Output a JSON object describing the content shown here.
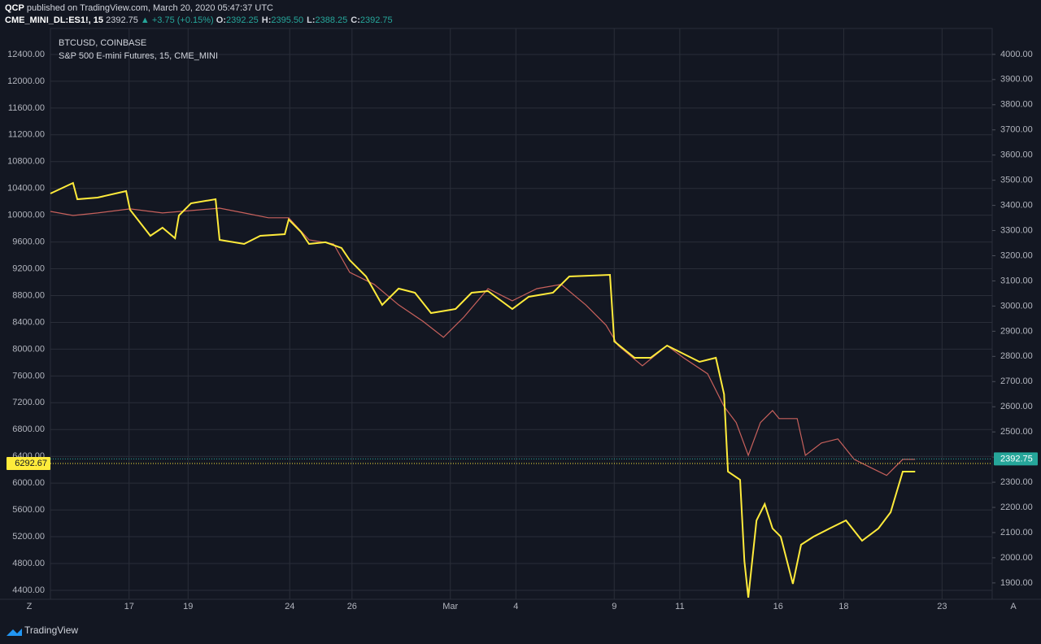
{
  "header": {
    "author": "QCP",
    "published": "published on TradingView.com, March 20, 2020 05:47:37 UTC",
    "symbol": "CME_MINI_DL:ES1!, 15",
    "last": "2392.75",
    "change": "▲ +3.75 (+0.15%)",
    "ohlc": [
      {
        "label": "O:",
        "value": "2392.25"
      },
      {
        "label": "H:",
        "value": "2395.50"
      },
      {
        "label": "L:",
        "value": "2388.25"
      },
      {
        "label": "C:",
        "value": "2392.75"
      }
    ]
  },
  "footer": {
    "brand": "TradingView"
  },
  "corners": {
    "left": "Z",
    "right": "A"
  },
  "chart_data": {
    "type": "line",
    "grid": true,
    "xlim": [
      0,
      28.73
    ],
    "xticks": [
      {
        "value": 2.4,
        "label": "17"
      },
      {
        "value": 4.2,
        "label": "19"
      },
      {
        "value": 7.3,
        "label": "24"
      },
      {
        "value": 9.2,
        "label": "26"
      },
      {
        "value": 12.2,
        "label": "Mar"
      },
      {
        "value": 14.2,
        "label": "4"
      },
      {
        "value": 17.2,
        "label": "9"
      },
      {
        "value": 19.2,
        "label": "11"
      },
      {
        "value": 22.2,
        "label": "16"
      },
      {
        "value": 24.2,
        "label": "18"
      },
      {
        "value": 27.2,
        "label": "23"
      }
    ],
    "ylim": [
      4266,
      12788
    ],
    "yticks": [
      {
        "value": 4400,
        "label": "4400.00"
      },
      {
        "value": 4800,
        "label": "4800.00"
      },
      {
        "value": 5200,
        "label": "5200.00"
      },
      {
        "value": 5600,
        "label": "5600.00"
      },
      {
        "value": 6000,
        "label": "6000.00"
      },
      {
        "value": 6400,
        "label": "6400.00"
      },
      {
        "value": 6800,
        "label": "6800.00"
      },
      {
        "value": 7200,
        "label": "7200.00"
      },
      {
        "value": 7600,
        "label": "7600.00"
      },
      {
        "value": 8000,
        "label": "8000.00"
      },
      {
        "value": 8400,
        "label": "8400.00"
      },
      {
        "value": 8800,
        "label": "8800.00"
      },
      {
        "value": 9200,
        "label": "9200.00"
      },
      {
        "value": 9600,
        "label": "9600.00"
      },
      {
        "value": 10000,
        "label": "10000.00"
      },
      {
        "value": 10400,
        "label": "10400.00"
      },
      {
        "value": 10800,
        "label": "10800.00"
      },
      {
        "value": 11200,
        "label": "11200.00"
      },
      {
        "value": 11600,
        "label": "11600.00"
      },
      {
        "value": 12000,
        "label": "12000.00"
      },
      {
        "value": 12400,
        "label": "12400.00"
      }
    ],
    "y2lim": [
      1835,
      4103
    ],
    "y2ticks": [
      {
        "value": 1900,
        "label": "1900.00"
      },
      {
        "value": 2000,
        "label": "2000.00"
      },
      {
        "value": 2100,
        "label": "2100.00"
      },
      {
        "value": 2200,
        "label": "2200.00"
      },
      {
        "value": 2300,
        "label": "2300.00"
      },
      {
        "value": 2400,
        "label": "2400.00"
      },
      {
        "value": 2500,
        "label": "2500.00"
      },
      {
        "value": 2600,
        "label": "2600.00"
      },
      {
        "value": 2700,
        "label": "2700.00"
      },
      {
        "value": 2800,
        "label": "2800.00"
      },
      {
        "value": 2900,
        "label": "2900.00"
      },
      {
        "value": 3000,
        "label": "3000.00"
      },
      {
        "value": 3100,
        "label": "3100.00"
      },
      {
        "value": 3200,
        "label": "3200.00"
      },
      {
        "value": 3300,
        "label": "3300.00"
      },
      {
        "value": 3400,
        "label": "3400.00"
      },
      {
        "value": 3500,
        "label": "3500.00"
      },
      {
        "value": 3600,
        "label": "3600.00"
      },
      {
        "value": 3700,
        "label": "3700.00"
      },
      {
        "value": 3800,
        "label": "3800.00"
      },
      {
        "value": 3900,
        "label": "3900.00"
      },
      {
        "value": 4000,
        "label": "4000.00"
      }
    ],
    "series": [
      {
        "name": "S&P 500 E-mini Futures, 15, CME_MINI",
        "color": "#c8615c",
        "axis": "y2",
        "last_value": 2392.75,
        "tag_color": "#26a69a",
        "x": [
          0,
          0.69,
          1.44,
          2.43,
          3.42,
          5.16,
          5.91,
          6.65,
          7.27,
          7.89,
          8.64,
          9.13,
          9.88,
          10.62,
          11.36,
          11.99,
          12.61,
          13.35,
          14.09,
          14.84,
          15.58,
          16.33,
          16.95,
          17.32,
          18.06,
          18.81,
          19.31,
          20.05,
          20.55,
          20.92,
          21.29,
          21.66,
          22.03,
          22.23,
          22.78,
          23.03,
          23.52,
          24.02,
          24.52,
          25.01,
          25.51,
          26.0,
          26.38
        ],
        "values": [
          3376,
          3360,
          3370,
          3386,
          3370,
          3389,
          3370,
          3351,
          3351,
          3263,
          3247,
          3134,
          3086,
          3005,
          2940,
          2876,
          2956,
          3069,
          3021,
          3069,
          3086,
          3005,
          2924,
          2843,
          2763,
          2843,
          2795,
          2731,
          2601,
          2537,
          2407,
          2537,
          2585,
          2553,
          2553,
          2407,
          2456,
          2472,
          2391,
          2359,
          2327,
          2391,
          2391
        ]
      },
      {
        "name": "BTCUSD, COINBASE",
        "color": "#ffeb3b",
        "last_value": 6292.67,
        "tag_color": "#ffeb3b",
        "x": [
          0,
          0.69,
          0.82,
          1.44,
          2.31,
          2.43,
          3.05,
          3.42,
          3.8,
          3.92,
          4.29,
          5.04,
          5.16,
          5.91,
          6.4,
          7.15,
          7.27,
          7.64,
          7.89,
          8.39,
          8.88,
          9.13,
          9.63,
          10.12,
          10.62,
          11.12,
          11.61,
          12.36,
          12.85,
          13.35,
          14.09,
          14.59,
          15.33,
          15.83,
          17.07,
          17.2,
          17.82,
          18.31,
          18.81,
          19.8,
          20.3,
          20.55,
          20.67,
          21.04,
          21.17,
          21.29,
          21.54,
          21.79,
          22.03,
          22.28,
          22.65,
          22.9,
          23.28,
          23.77,
          24.27,
          24.76,
          25.26,
          25.63,
          26.0,
          26.38
        ],
        "values": [
          10324,
          10482,
          10239,
          10263,
          10360,
          10081,
          9693,
          9814,
          9656,
          9996,
          10178,
          10239,
          9632,
          9571,
          9693,
          9717,
          9936,
          9753,
          9571,
          9596,
          9511,
          9329,
          9086,
          8661,
          8904,
          8843,
          8539,
          8600,
          8843,
          8867,
          8600,
          8782,
          8843,
          9086,
          9110,
          8115,
          7872,
          7872,
          8054,
          7811,
          7872,
          7326,
          6172,
          6051,
          4837,
          4291,
          5444,
          5687,
          5323,
          5201,
          4497,
          5080,
          5201,
          5323,
          5444,
          5140,
          5323,
          5565,
          6172,
          6172
        ]
      }
    ]
  }
}
